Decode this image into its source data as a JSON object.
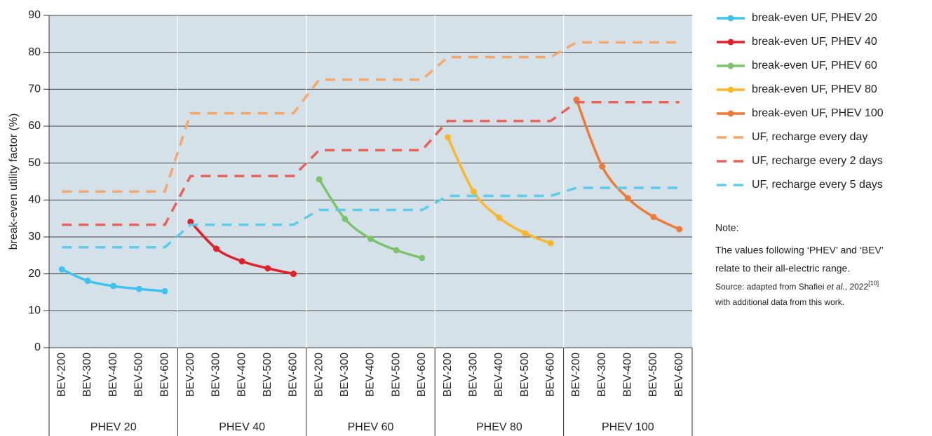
{
  "chart_data": {
    "type": "line",
    "y_label": "break-even utility factor (%)",
    "categories": [
      "BEV-200",
      "BEV-300",
      "BEV-400",
      "BEV-500",
      "BEV-600",
      "BEV-200",
      "BEV-300",
      "BEV-400",
      "BEV-500",
      "BEV-600",
      "BEV-200",
      "BEV-300",
      "BEV-400",
      "BEV-500",
      "BEV-600",
      "BEV-200",
      "BEV-300",
      "BEV-400",
      "BEV-500",
      "BEV-600",
      "BEV-200",
      "BEV-300",
      "BEV-400",
      "BEV-500",
      "BEV-600"
    ],
    "category_groups": [
      "PHEV 20",
      "PHEV 40",
      "PHEV 60",
      "PHEV 80",
      "PHEV 100"
    ],
    "ylim": [
      0,
      90
    ],
    "yticks": [
      0,
      10,
      20,
      30,
      40,
      50,
      60,
      70,
      80,
      90
    ],
    "grid": true,
    "series": [
      {
        "name": "break-even UF, PHEV 20",
        "color": "#3fc3ee",
        "markers": true,
        "dashed": false,
        "values": [
          21.2,
          18.1,
          16.7,
          15.9,
          15.3,
          null,
          null,
          null,
          null,
          null,
          null,
          null,
          null,
          null,
          null,
          null,
          null,
          null,
          null,
          null,
          null,
          null,
          null,
          null,
          null
        ]
      },
      {
        "name": "break-even UF, PHEV 40",
        "color": "#e3202a",
        "markers": true,
        "dashed": false,
        "values": [
          null,
          null,
          null,
          null,
          null,
          34.1,
          26.8,
          23.4,
          21.5,
          20.0,
          null,
          null,
          null,
          null,
          null,
          null,
          null,
          null,
          null,
          null,
          null,
          null,
          null,
          null,
          null
        ]
      },
      {
        "name": "break-even UF, PHEV 60",
        "color": "#7cc46c",
        "markers": true,
        "dashed": false,
        "values": [
          null,
          null,
          null,
          null,
          null,
          null,
          null,
          null,
          null,
          null,
          45.6,
          34.9,
          29.5,
          26.4,
          24.3,
          null,
          null,
          null,
          null,
          null,
          null,
          null,
          null,
          null,
          null
        ]
      },
      {
        "name": "break-even UF, PHEV 80",
        "color": "#fbb72a",
        "markers": true,
        "dashed": false,
        "values": [
          null,
          null,
          null,
          null,
          null,
          null,
          null,
          null,
          null,
          null,
          null,
          null,
          null,
          null,
          null,
          57.0,
          42.3,
          35.2,
          31.0,
          28.3,
          null,
          null,
          null,
          null,
          null
        ]
      },
      {
        "name": "break-even UF, PHEV 100",
        "color": "#ef7a35",
        "markers": true,
        "dashed": false,
        "values": [
          null,
          null,
          null,
          null,
          null,
          null,
          null,
          null,
          null,
          null,
          null,
          null,
          null,
          null,
          null,
          null,
          null,
          null,
          null,
          null,
          67.2,
          49.1,
          40.5,
          35.4,
          32.1
        ]
      },
      {
        "name": "UF, recharge every day",
        "color": "#f5a86c",
        "markers": false,
        "dashed": true,
        "values": [
          42.3,
          42.3,
          42.3,
          42.3,
          42.3,
          63.5,
          63.5,
          63.5,
          63.5,
          63.5,
          72.6,
          72.6,
          72.6,
          72.6,
          72.6,
          78.7,
          78.7,
          78.7,
          78.7,
          78.7,
          82.7,
          82.7,
          82.7,
          82.7,
          82.7
        ]
      },
      {
        "name": "UF, recharge every 2 days",
        "color": "#e8615a",
        "markers": false,
        "dashed": true,
        "values": [
          33.3,
          33.3,
          33.3,
          33.3,
          33.3,
          46.5,
          46.5,
          46.5,
          46.5,
          46.5,
          53.5,
          53.5,
          53.5,
          53.5,
          53.5,
          61.4,
          61.4,
          61.4,
          61.4,
          61.4,
          66.5,
          66.5,
          66.5,
          66.5,
          66.5
        ]
      },
      {
        "name": "UF, recharge every 5 days",
        "color": "#5dcbea",
        "markers": false,
        "dashed": true,
        "values": [
          27.2,
          27.2,
          27.2,
          27.2,
          27.2,
          33.3,
          33.3,
          33.3,
          33.3,
          33.3,
          37.3,
          37.3,
          37.3,
          37.3,
          37.3,
          41.1,
          41.1,
          41.1,
          41.1,
          41.1,
          43.3,
          43.3,
          43.3,
          43.3,
          43.3
        ]
      }
    ],
    "note": {
      "title": "Note:",
      "lines": [
        "The values following ‘PHEV’ and ‘BEV’",
        "relate to their all-electric range."
      ],
      "source": [
        "Source: adapted from Shafiei ",
        "et al.",
        ", 2022",
        "[10]"
      ],
      "source_line2": "with additional data from this work."
    }
  }
}
